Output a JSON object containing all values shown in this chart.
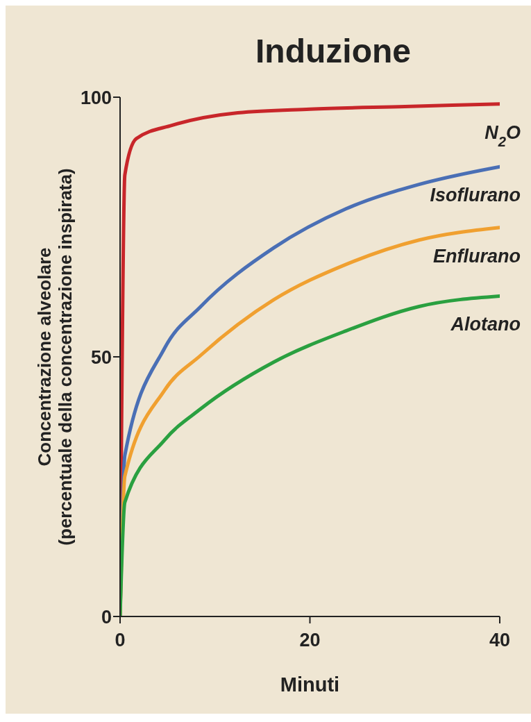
{
  "chart_data": {
    "type": "line",
    "title": "Induzione",
    "xlabel": "Minuti",
    "ylabel": "Concentrazione alveolare\n(percentuale della concentrazione inspirata)",
    "xlim": [
      0,
      40
    ],
    "ylim": [
      0,
      100
    ],
    "xticks": [
      0,
      20,
      40
    ],
    "yticks": [
      0,
      50,
      100
    ],
    "grid": false,
    "legend": false,
    "marker": "none",
    "line_style": "solid",
    "series": [
      {
        "name": "N$_{2}$O",
        "color": "#c8262a",
        "x": [
          0,
          0.5,
          1.7,
          5.5,
          12.4,
          20,
          30,
          40
        ],
        "values": [
          0,
          85,
          92,
          94.6,
          97,
          97.7,
          98.2,
          98.7
        ]
      },
      {
        "name": "Isoflurano",
        "color": "#4a6fb5",
        "x": [
          0,
          0.5,
          4.7,
          8.5,
          16.2,
          23.8,
          31.5,
          40
        ],
        "values": [
          0,
          31,
          51.7,
          59.7,
          71,
          78.5,
          83.2,
          86.6
        ]
      },
      {
        "name": "Enflurano",
        "color": "#f0a030",
        "x": [
          0,
          0.5,
          4.7,
          8.5,
          16.2,
          23.8,
          31.5,
          40
        ],
        "values": [
          0,
          27,
          43.6,
          50.3,
          61,
          67.8,
          72.5,
          74.9
        ]
      },
      {
        "name": "Alotano",
        "color": "#2aa040",
        "x": [
          0,
          0.5,
          4.7,
          8.5,
          16.2,
          23.8,
          31.5,
          40
        ],
        "values": [
          0,
          22,
          34,
          40,
          49,
          55,
          59.7,
          61.7
        ]
      }
    ]
  }
}
